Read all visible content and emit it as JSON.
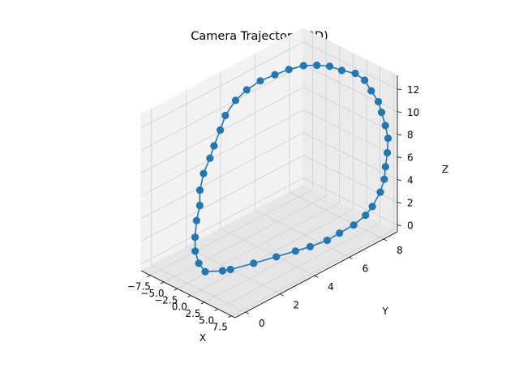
{
  "chart_data": {
    "type": "line",
    "projection": "3d",
    "title": "Camera Trajectory (3D)",
    "xlabel": "X",
    "ylabel": "Y",
    "zlabel": "Z",
    "xlim": [
      -9.2,
      8.2
    ],
    "ylim": [
      -0.6,
      8.8
    ],
    "zlim": [
      -0.6,
      13.2
    ],
    "x_ticks": [
      "−7.5",
      "−5.0",
      "−2.5",
      "0.0",
      "2.5",
      "5.0",
      "7.5"
    ],
    "y_ticks": [
      "0",
      "2",
      "4",
      "6",
      "8"
    ],
    "z_ticks": [
      "0",
      "2",
      "4",
      "6",
      "8",
      "10",
      "12"
    ],
    "grid": true,
    "marker": "circle",
    "series_color": "#1f77b4",
    "pane_colors": [
      "#f2f2f2",
      "#ebebeb",
      "#e6e6e6"
    ],
    "grid_color": "#d0d0d0",
    "series": [
      {
        "points": [
          [
            -0.2,
            1.3,
            0.0
          ],
          [
            -1.5,
            0.7,
            0.1
          ],
          [
            -3.0,
            0.8,
            0.4
          ],
          [
            -4.3,
            1.0,
            1.0
          ],
          [
            -5.6,
            1.4,
            1.6
          ],
          [
            -6.6,
            1.8,
            2.5
          ],
          [
            -7.6,
            2.3,
            3.2
          ],
          [
            -7.9,
            2.4,
            4.4
          ],
          [
            -8.5,
            2.8,
            5.4
          ],
          [
            -8.6,
            3.2,
            6.4
          ],
          [
            -8.8,
            3.5,
            7.2
          ],
          [
            -8.6,
            3.8,
            8.4
          ],
          [
            -8.3,
            4.0,
            9.6
          ],
          [
            -8.0,
            4.5,
            10.6
          ],
          [
            -7.2,
            4.9,
            11.4
          ],
          [
            -6.3,
            5.4,
            12.0
          ],
          [
            -5.2,
            5.9,
            12.4
          ],
          [
            -4.2,
            6.4,
            12.7
          ],
          [
            -3.1,
            6.9,
            12.9
          ],
          [
            -1.9,
            7.3,
            12.9
          ],
          [
            -0.5,
            7.6,
            12.9
          ],
          [
            0.8,
            7.9,
            12.6
          ],
          [
            2.0,
            8.3,
            12.3
          ],
          [
            3.1,
            8.5,
            11.8
          ],
          [
            4.0,
            8.6,
            11.0
          ],
          [
            5.0,
            8.7,
            10.2
          ],
          [
            5.6,
            8.7,
            9.4
          ],
          [
            6.3,
            8.7,
            8.4
          ],
          [
            6.8,
            8.7,
            7.4
          ],
          [
            7.3,
            8.5,
            6.4
          ],
          [
            7.6,
            8.3,
            5.4
          ],
          [
            7.7,
            8.2,
            4.4
          ],
          [
            7.6,
            8.0,
            3.4
          ],
          [
            7.4,
            7.6,
            2.4
          ],
          [
            7.1,
            7.3,
            1.8
          ],
          [
            6.5,
            6.8,
            1.2
          ],
          [
            5.8,
            6.2,
            0.8
          ],
          [
            5.1,
            5.7,
            0.4
          ],
          [
            4.2,
            5.0,
            0.2
          ],
          [
            3.4,
            4.4,
            0.1
          ],
          [
            2.4,
            3.6,
            0.0
          ],
          [
            1.4,
            2.6,
            0.0
          ],
          [
            0.3,
            1.6,
            0.0
          ],
          [
            -0.2,
            1.3,
            0.0
          ]
        ]
      }
    ]
  }
}
